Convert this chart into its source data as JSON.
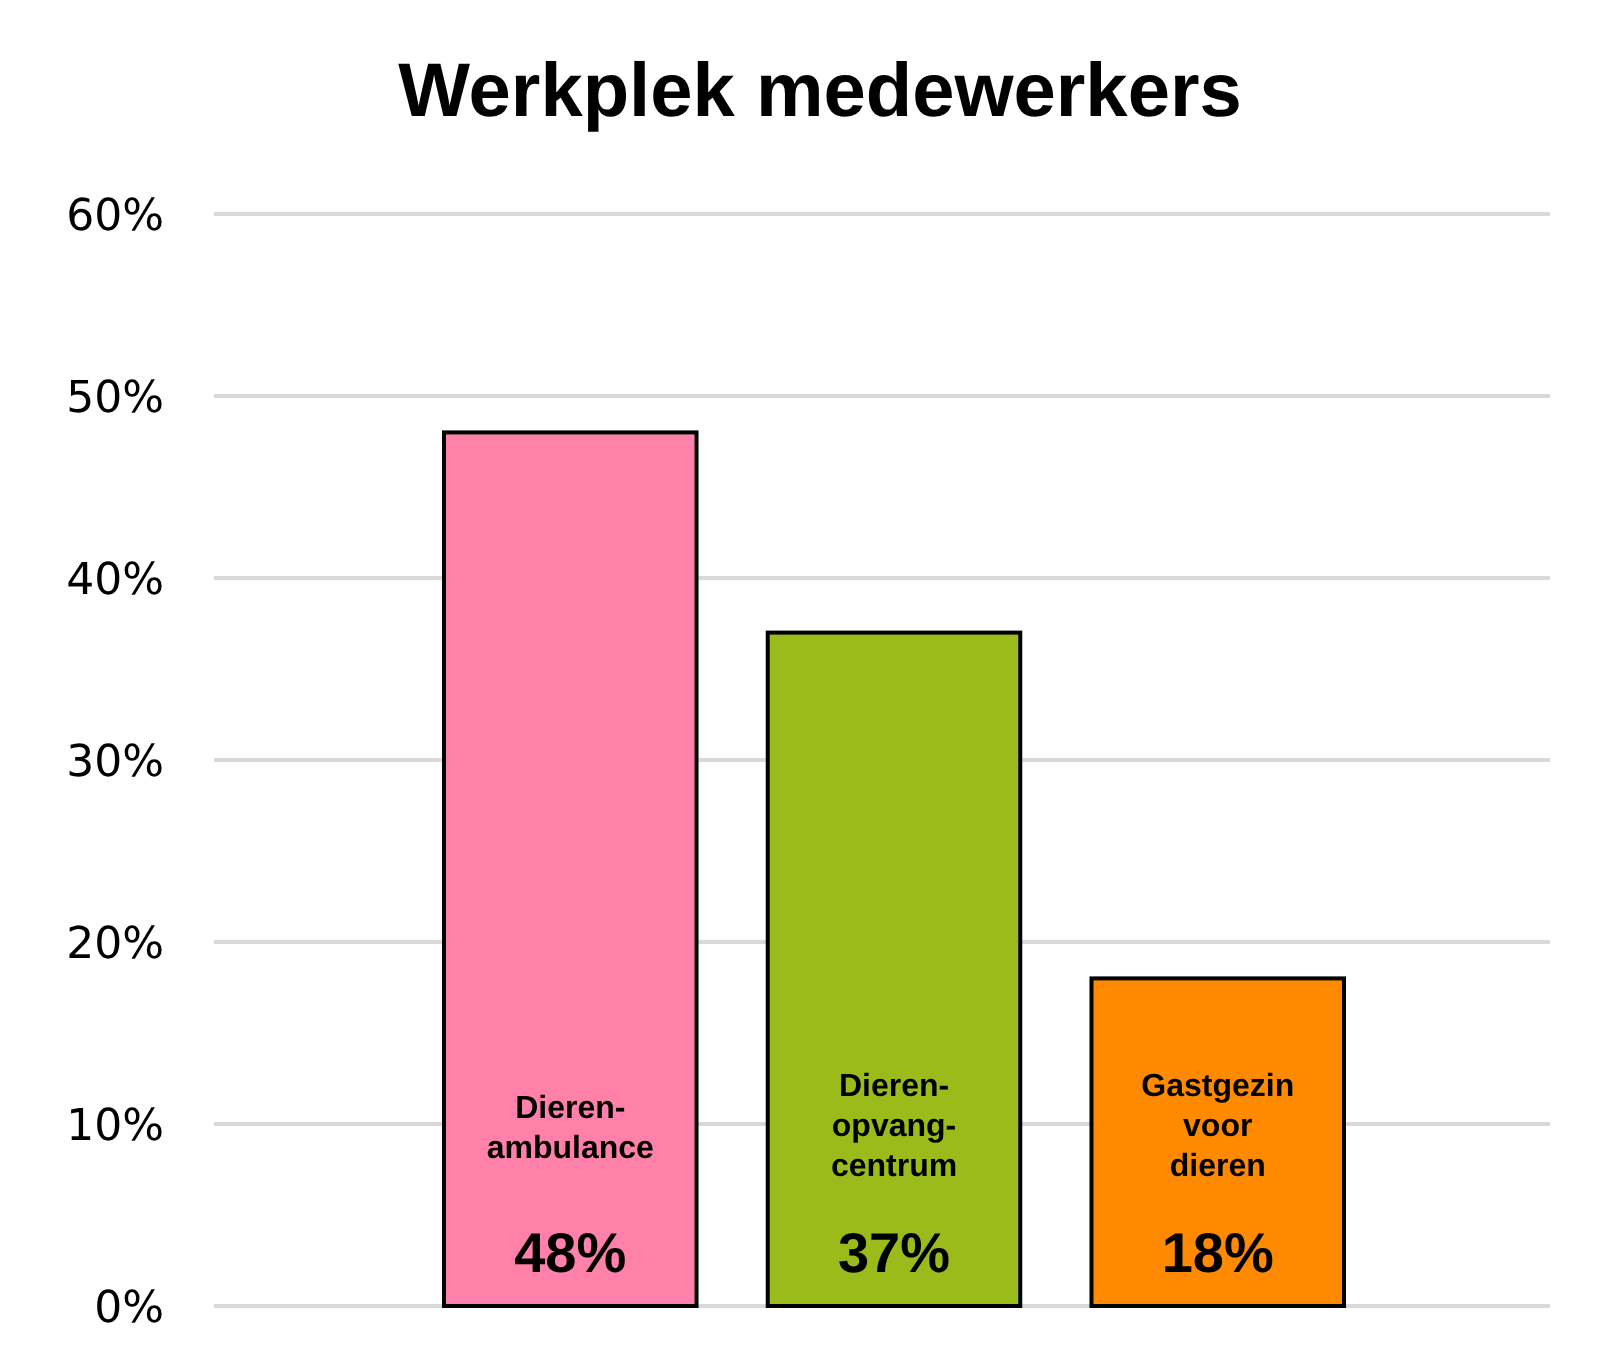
{
  "chart_data": {
    "type": "bar",
    "title": "Werkplek medewerkers",
    "categories": [
      "Dieren-ambulance",
      "Dieren-opvang-centrum",
      "Gastgezin voor dieren"
    ],
    "values": [
      48,
      37,
      18
    ],
    "colors": [
      "#ff80a8",
      "#9bbb1a",
      "#ff8a00"
    ],
    "value_labels": [
      "48%",
      "37%",
      "18%"
    ],
    "ylim": [
      0,
      60
    ],
    "yticks": [
      {
        "value": 0,
        "label": "0%"
      },
      {
        "value": 10,
        "label": "10%"
      },
      {
        "value": 20,
        "label": "20%"
      },
      {
        "value": 30,
        "label": "30%"
      },
      {
        "value": 40,
        "label": "40%"
      },
      {
        "value": 50,
        "label": "50%"
      },
      {
        "value": 60,
        "label": "60%"
      }
    ],
    "grid": "y"
  }
}
